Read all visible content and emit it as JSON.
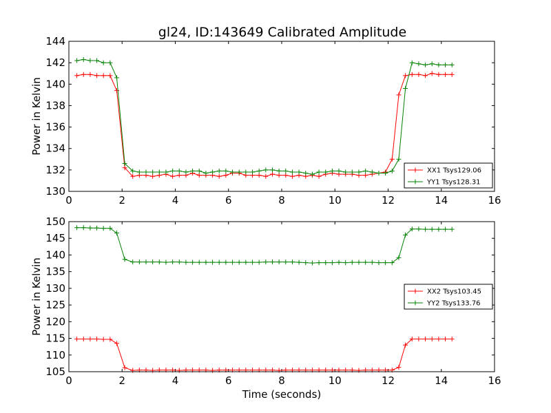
{
  "figure_title": "gl24, ID:143649 Calibrated Amplitude",
  "colors": {
    "XX": "#ff0000",
    "YY": "#008000"
  },
  "chart_data": [
    {
      "type": "line",
      "title": "gl24, ID:143649 Calibrated Amplitude",
      "xlabel": "",
      "ylabel": "Power in Kelvin",
      "xlim": [
        0,
        16
      ],
      "ylim": [
        130,
        144
      ],
      "xticks": [
        0,
        2,
        4,
        6,
        8,
        10,
        12,
        14,
        16
      ],
      "yticks": [
        130,
        132,
        134,
        136,
        138,
        140,
        142,
        144
      ],
      "legend": "lower-right",
      "x": [
        0.3,
        0.55,
        0.8,
        1.05,
        1.3,
        1.55,
        1.8,
        2.1,
        2.4,
        2.65,
        2.9,
        3.15,
        3.4,
        3.65,
        3.9,
        4.15,
        4.4,
        4.65,
        4.9,
        5.15,
        5.4,
        5.65,
        5.9,
        6.15,
        6.4,
        6.65,
        6.9,
        7.15,
        7.4,
        7.65,
        7.9,
        8.15,
        8.4,
        8.65,
        8.9,
        9.15,
        9.4,
        9.65,
        9.9,
        10.15,
        10.4,
        10.65,
        10.9,
        11.15,
        11.4,
        11.65,
        11.9,
        12.15,
        12.4,
        12.65,
        12.9,
        13.15,
        13.4,
        13.65,
        13.9,
        14.15,
        14.4
      ],
      "series": [
        {
          "name": "XX1 Tsys129.06",
          "color": "#ff0000",
          "values": [
            140.8,
            140.9,
            140.9,
            140.8,
            140.8,
            140.8,
            139.4,
            132.2,
            131.4,
            131.5,
            131.5,
            131.4,
            131.5,
            131.6,
            131.4,
            131.5,
            131.5,
            131.7,
            131.5,
            131.5,
            131.5,
            131.4,
            131.5,
            131.7,
            131.7,
            131.5,
            131.5,
            131.5,
            131.4,
            131.6,
            131.5,
            131.5,
            131.4,
            131.5,
            131.4,
            131.5,
            131.4,
            131.6,
            131.7,
            131.6,
            131.6,
            131.6,
            131.5,
            131.5,
            131.6,
            131.7,
            131.8,
            133.0,
            139.0,
            140.8,
            140.9,
            140.9,
            140.8,
            141.0,
            140.9,
            140.9,
            140.9
          ]
        },
        {
          "name": "YY1 Tsys128.31",
          "color": "#008000",
          "values": [
            142.2,
            142.3,
            142.2,
            142.2,
            142.0,
            142.0,
            140.6,
            132.6,
            131.9,
            131.8,
            131.8,
            131.8,
            131.8,
            131.8,
            131.9,
            131.9,
            131.8,
            131.9,
            131.9,
            131.7,
            131.8,
            131.9,
            131.9,
            131.8,
            131.8,
            131.8,
            131.8,
            131.9,
            132.0,
            132.0,
            131.9,
            131.9,
            131.8,
            131.8,
            131.7,
            131.6,
            131.8,
            131.8,
            131.9,
            131.9,
            131.8,
            131.8,
            131.8,
            131.9,
            131.8,
            131.7,
            131.7,
            131.9,
            133.0,
            139.6,
            142.0,
            141.9,
            141.8,
            141.9,
            141.8,
            141.8,
            141.8
          ]
        }
      ]
    },
    {
      "type": "line",
      "title": "",
      "xlabel": "Time (seconds)",
      "ylabel": "Power in Kelvin",
      "xlim": [
        0,
        16
      ],
      "ylim": [
        105,
        150
      ],
      "xticks": [
        0,
        2,
        4,
        6,
        8,
        10,
        12,
        14,
        16
      ],
      "yticks": [
        105,
        110,
        115,
        120,
        125,
        130,
        135,
        140,
        145,
        150
      ],
      "legend": "center-right",
      "x": [
        0.3,
        0.55,
        0.8,
        1.05,
        1.3,
        1.55,
        1.8,
        2.1,
        2.4,
        2.65,
        2.9,
        3.15,
        3.4,
        3.65,
        3.9,
        4.15,
        4.4,
        4.65,
        4.9,
        5.15,
        5.4,
        5.65,
        5.9,
        6.15,
        6.4,
        6.65,
        6.9,
        7.15,
        7.4,
        7.65,
        7.9,
        8.15,
        8.4,
        8.65,
        8.9,
        9.15,
        9.4,
        9.65,
        9.9,
        10.15,
        10.4,
        10.65,
        10.9,
        11.15,
        11.4,
        11.65,
        11.9,
        12.15,
        12.4,
        12.65,
        12.9,
        13.15,
        13.4,
        13.65,
        13.9,
        14.15,
        14.4
      ],
      "series": [
        {
          "name": "XX2 Tsys103.45",
          "color": "#ff0000",
          "values": [
            114.8,
            114.8,
            114.8,
            114.8,
            114.7,
            114.7,
            113.5,
            106.2,
            105.4,
            105.5,
            105.5,
            105.4,
            105.5,
            105.5,
            105.5,
            105.4,
            105.5,
            105.5,
            105.5,
            105.5,
            105.4,
            105.5,
            105.5,
            105.5,
            105.5,
            105.5,
            105.5,
            105.5,
            105.5,
            105.5,
            105.4,
            105.5,
            105.5,
            105.5,
            105.5,
            105.5,
            105.5,
            105.5,
            105.5,
            105.5,
            105.5,
            105.5,
            105.4,
            105.5,
            105.5,
            105.5,
            105.5,
            105.5,
            106.3,
            113.0,
            114.8,
            114.8,
            114.8,
            114.8,
            114.8,
            114.8,
            114.8
          ]
        },
        {
          "name": "YY2 Tsys133.76",
          "color": "#008000",
          "values": [
            148.2,
            148.2,
            148.1,
            148.1,
            148.0,
            148.0,
            146.6,
            138.7,
            137.9,
            137.9,
            137.9,
            137.9,
            137.9,
            137.8,
            137.9,
            137.9,
            137.8,
            137.8,
            137.8,
            137.8,
            137.8,
            137.8,
            137.8,
            137.8,
            137.8,
            137.8,
            137.8,
            137.8,
            137.9,
            137.9,
            137.9,
            137.9,
            137.9,
            137.8,
            137.7,
            137.6,
            137.7,
            137.7,
            137.7,
            137.8,
            137.7,
            137.8,
            137.8,
            137.8,
            137.8,
            137.7,
            137.7,
            137.7,
            139.2,
            146.0,
            147.8,
            147.8,
            147.7,
            147.7,
            147.7,
            147.7,
            147.7
          ]
        }
      ]
    }
  ]
}
